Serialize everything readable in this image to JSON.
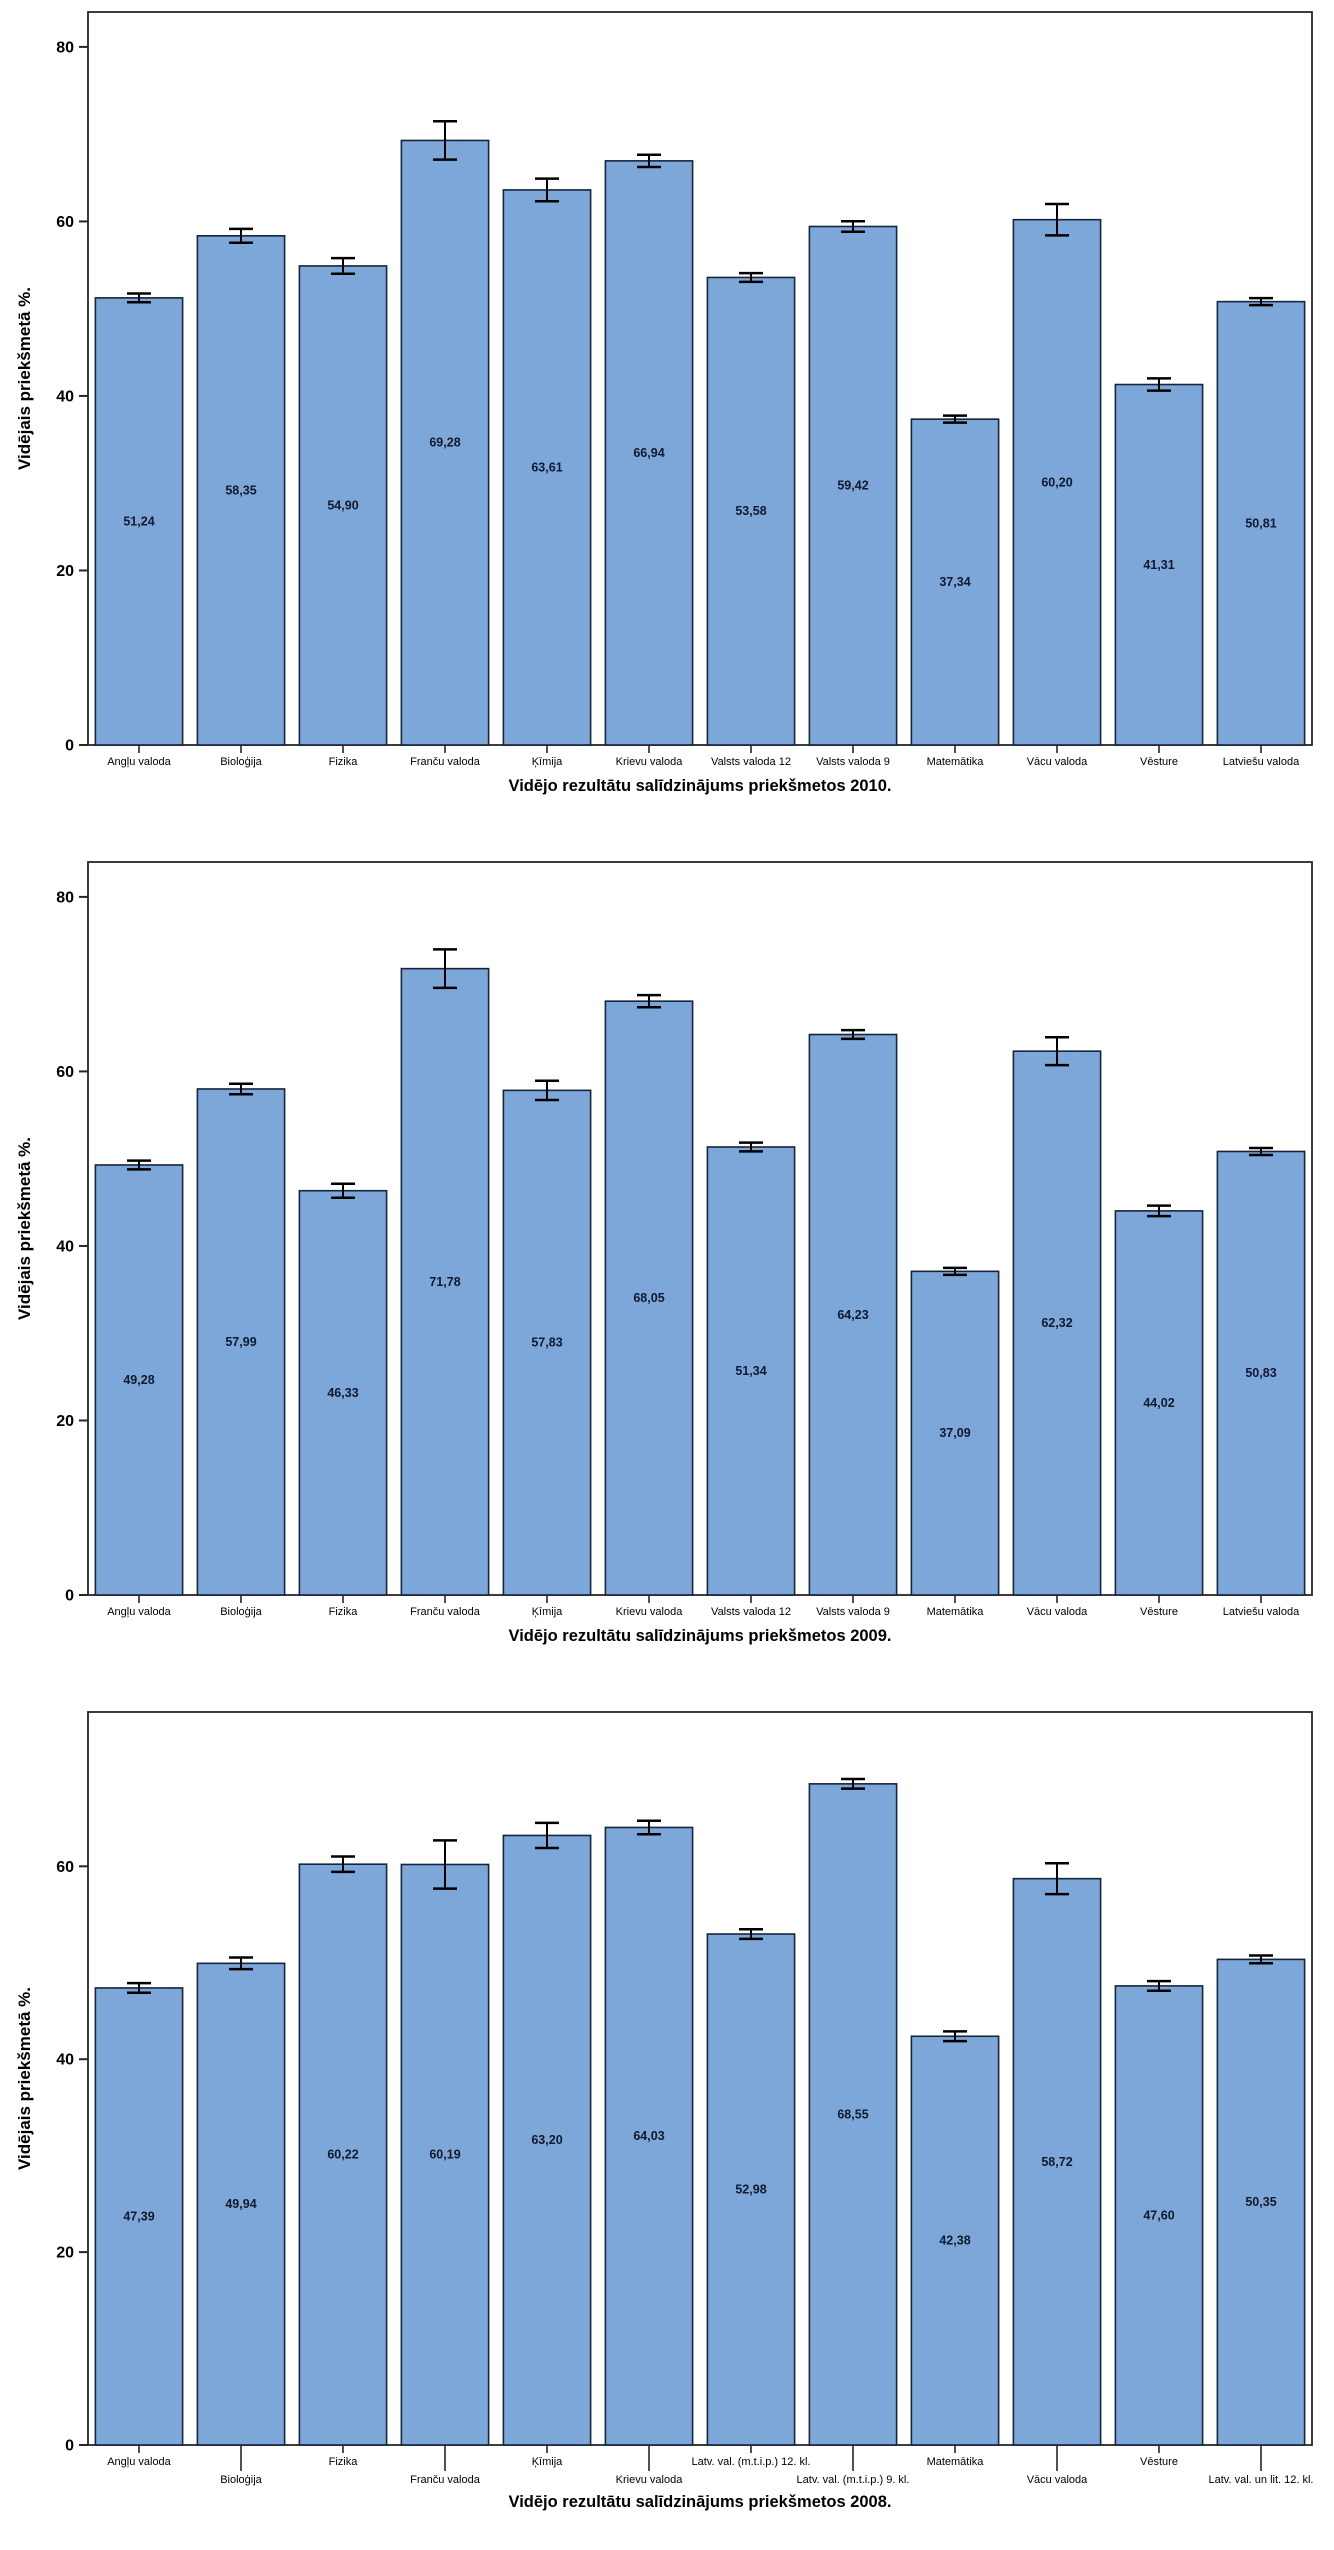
{
  "colors": {
    "bar_fill": "#7da7d8",
    "bar_border": "#16243c",
    "error_bar": "#000000",
    "axis": "#262626",
    "plot_border": "#262626",
    "value_label_text": "#10192e",
    "tick_label_text": "#000000",
    "title_text": "#000000"
  },
  "chart_data": [
    {
      "type": "bar",
      "title": "Vidējo rezultātu salīdzinājums priekšmetos 2010.",
      "ylabel": "Vidējais priekšmetā %.",
      "xlabel": "",
      "ylim": [
        0,
        84
      ],
      "yticks": [
        0,
        20,
        40,
        60,
        80
      ],
      "grid": false,
      "legend": "none",
      "staggered_labels": false,
      "categories": [
        "Angļu valoda",
        "Bioloģija",
        "Fizika",
        "Franču valoda",
        "Ķīmija",
        "Krievu valoda",
        "Valsts valoda 12",
        "Valsts valoda 9",
        "Matemātika",
        "Vācu valoda",
        "Vēsture",
        "Latviešu valoda"
      ],
      "values": [
        51.24,
        58.35,
        54.9,
        69.28,
        63.61,
        66.94,
        53.58,
        59.42,
        37.34,
        60.2,
        41.31,
        50.81
      ],
      "value_labels": [
        "51,24",
        "58,35",
        "54,90",
        "69,28",
        "63,61",
        "66,94",
        "53,58",
        "59,42",
        "37,34",
        "60,20",
        "41,31",
        "50,81"
      ],
      "errors": [
        0.5,
        0.8,
        0.9,
        2.2,
        1.3,
        0.7,
        0.5,
        0.6,
        0.4,
        1.8,
        0.7,
        0.4
      ]
    },
    {
      "type": "bar",
      "title": "Vidējo rezultātu salīdzinājums priekšmetos 2009.",
      "ylabel": "Vidējais priekšmetā %.",
      "xlabel": "",
      "ylim": [
        0,
        84
      ],
      "yticks": [
        0,
        20,
        40,
        60,
        80
      ],
      "grid": false,
      "legend": "none",
      "staggered_labels": false,
      "categories": [
        "Angļu valoda",
        "Bioloģija",
        "Fizika",
        "Franču valoda",
        "Ķīmija",
        "Krievu valoda",
        "Valsts valoda 12",
        "Valsts valoda 9",
        "Matemātika",
        "Vācu valoda",
        "Vēsture",
        "Latviešu valoda"
      ],
      "values": [
        49.28,
        57.99,
        46.33,
        71.78,
        57.83,
        68.05,
        51.34,
        64.23,
        37.09,
        62.32,
        44.02,
        50.83
      ],
      "value_labels": [
        "49,28",
        "57,99",
        "46,33",
        "71,78",
        "57,83",
        "68,05",
        "51,34",
        "64,23",
        "37,09",
        "62,32",
        "44,02",
        "50,83"
      ],
      "errors": [
        0.5,
        0.6,
        0.8,
        2.2,
        1.1,
        0.7,
        0.5,
        0.5,
        0.4,
        1.6,
        0.6,
        0.4
      ]
    },
    {
      "type": "bar",
      "title": "Vidējo rezultātu salīdzinājums priekšmetos 2008.",
      "ylabel": "Vidējais priekšmetā %.",
      "xlabel": "",
      "ylim": [
        0,
        76
      ],
      "yticks": [
        0,
        20,
        40,
        60
      ],
      "grid": false,
      "legend": "none",
      "staggered_labels": true,
      "categories": [
        "Angļu valoda",
        "Bioloģija",
        "Fizika",
        "Franču valoda",
        "Ķīmija",
        "Krievu valoda",
        "Latv. val. (m.t.i.p.) 12. kl.",
        "Latv. val. (m.t.i.p.) 9. kl.",
        "Matemātika",
        "Vācu valoda",
        "Vēsture",
        "Latv. val. un lit. 12. kl."
      ],
      "values": [
        47.39,
        49.94,
        60.22,
        60.19,
        63.2,
        64.03,
        52.98,
        68.55,
        42.38,
        58.72,
        47.6,
        50.35
      ],
      "value_labels": [
        "47,39",
        "49,94",
        "60,22",
        "60,19",
        "63,20",
        "64,03",
        "52,98",
        "68,55",
        "42,38",
        "58,72",
        "47,60",
        "50,35"
      ],
      "errors": [
        0.5,
        0.6,
        0.8,
        2.5,
        1.3,
        0.7,
        0.5,
        0.5,
        0.5,
        1.6,
        0.5,
        0.4
      ]
    }
  ]
}
